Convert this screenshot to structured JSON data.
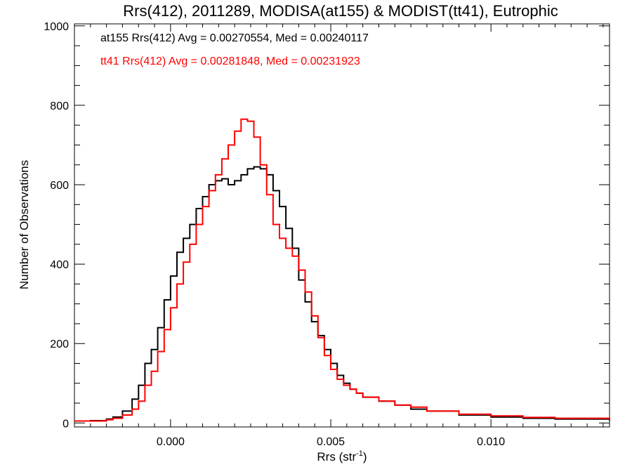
{
  "chart_data": {
    "type": "line",
    "title": "Rrs(412), 2011289, MODISA(at155) & MODIST(tt41), Eutrophic",
    "xlabel_main": "Rrs (str",
    "xlabel_sup": "-1",
    "xlabel_close": ")",
    "ylabel": "Number of Observations",
    "xlim": [
      -0.003,
      0.0137
    ],
    "ylim": [
      -10,
      1005
    ],
    "x_ticks": [
      0.0,
      0.005,
      0.01
    ],
    "x_tick_labels": [
      "0.000",
      "0.005",
      "0.010"
    ],
    "y_ticks": [
      0,
      200,
      400,
      600,
      800,
      1000
    ],
    "y_tick_labels": [
      "0",
      "200",
      "400",
      "600",
      "800",
      "1000"
    ],
    "grid": false,
    "legend_placement": "top-left",
    "series": [
      {
        "name": "at155",
        "color": "#000000",
        "legend": "at155 Rrs(412) Avg = 0.00270554, Med = 0.00240117",
        "points": [
          [
            -0.003,
            5
          ],
          [
            -0.0025,
            6
          ],
          [
            -0.002,
            10
          ],
          [
            -0.0018,
            15
          ],
          [
            -0.0015,
            30
          ],
          [
            -0.0012,
            60
          ],
          [
            -0.001,
            95
          ],
          [
            -0.0008,
            150
          ],
          [
            -0.0006,
            185
          ],
          [
            -0.0004,
            240
          ],
          [
            -0.0002,
            310
          ],
          [
            0.0,
            370
          ],
          [
            0.0002,
            430
          ],
          [
            0.0004,
            465
          ],
          [
            0.0006,
            500
          ],
          [
            0.0008,
            540
          ],
          [
            0.001,
            570
          ],
          [
            0.0012,
            600
          ],
          [
            0.0014,
            610
          ],
          [
            0.0016,
            615
          ],
          [
            0.0018,
            600
          ],
          [
            0.002,
            610
          ],
          [
            0.0022,
            625
          ],
          [
            0.0024,
            640
          ],
          [
            0.0026,
            645
          ],
          [
            0.0028,
            640
          ],
          [
            0.003,
            625
          ],
          [
            0.0032,
            585
          ],
          [
            0.0034,
            545
          ],
          [
            0.0036,
            490
          ],
          [
            0.0038,
            440
          ],
          [
            0.004,
            360
          ],
          [
            0.0042,
            305
          ],
          [
            0.0044,
            255
          ],
          [
            0.0046,
            220
          ],
          [
            0.0048,
            185
          ],
          [
            0.005,
            150
          ],
          [
            0.0052,
            120
          ],
          [
            0.0054,
            100
          ],
          [
            0.0056,
            85
          ],
          [
            0.0058,
            75
          ],
          [
            0.006,
            65
          ],
          [
            0.0065,
            55
          ],
          [
            0.007,
            45
          ],
          [
            0.0075,
            35
          ],
          [
            0.008,
            30
          ],
          [
            0.009,
            20
          ],
          [
            0.01,
            15
          ],
          [
            0.011,
            12
          ],
          [
            0.012,
            10
          ],
          [
            0.0137,
            6
          ]
        ]
      },
      {
        "name": "tt41",
        "color": "#ff0000",
        "legend": "tt41 Rrs(412) Avg = 0.00281848, Med = 0.00231923",
        "points": [
          [
            -0.003,
            5
          ],
          [
            -0.0025,
            5
          ],
          [
            -0.002,
            8
          ],
          [
            -0.0018,
            12
          ],
          [
            -0.0015,
            20
          ],
          [
            -0.0012,
            35
          ],
          [
            -0.001,
            55
          ],
          [
            -0.0008,
            95
          ],
          [
            -0.0006,
            130
          ],
          [
            -0.0004,
            180
          ],
          [
            -0.0002,
            235
          ],
          [
            0.0,
            290
          ],
          [
            0.0002,
            350
          ],
          [
            0.0004,
            405
          ],
          [
            0.0006,
            450
          ],
          [
            0.0008,
            500
          ],
          [
            0.001,
            545
          ],
          [
            0.0012,
            585
          ],
          [
            0.0014,
            625
          ],
          [
            0.0016,
            665
          ],
          [
            0.0018,
            700
          ],
          [
            0.002,
            735
          ],
          [
            0.0022,
            765
          ],
          [
            0.0024,
            760
          ],
          [
            0.0026,
            720
          ],
          [
            0.0028,
            650
          ],
          [
            0.003,
            575
          ],
          [
            0.0032,
            500
          ],
          [
            0.0034,
            465
          ],
          [
            0.0036,
            440
          ],
          [
            0.0038,
            420
          ],
          [
            0.004,
            385
          ],
          [
            0.0042,
            330
          ],
          [
            0.0044,
            270
          ],
          [
            0.0046,
            215
          ],
          [
            0.0048,
            170
          ],
          [
            0.005,
            135
          ],
          [
            0.0052,
            110
          ],
          [
            0.0054,
            95
          ],
          [
            0.0056,
            85
          ],
          [
            0.0058,
            75
          ],
          [
            0.006,
            65
          ],
          [
            0.0065,
            55
          ],
          [
            0.007,
            45
          ],
          [
            0.0075,
            40
          ],
          [
            0.008,
            30
          ],
          [
            0.009,
            22
          ],
          [
            0.01,
            18
          ],
          [
            0.011,
            14
          ],
          [
            0.012,
            12
          ],
          [
            0.0137,
            8
          ]
        ]
      }
    ]
  }
}
